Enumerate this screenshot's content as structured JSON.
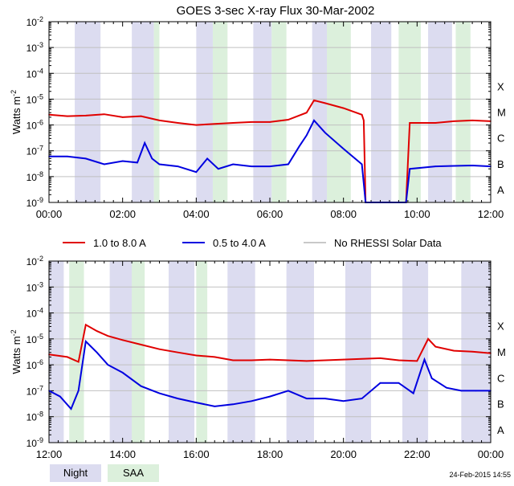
{
  "title": "GOES 3-sec X-ray Flux   30-Mar-2002",
  "footer": {
    "timestamp": "24-Feb-2015 14:55",
    "legend_night": "Night",
    "legend_saa": "SAA"
  },
  "colors": {
    "long_channel": "#e00000",
    "short_channel": "#0000e0",
    "no_rhessi": "#909090",
    "night": "#dcdcf0",
    "saa": "#dcf0dc",
    "grid": "#c0c0c0"
  },
  "chart_data": [
    {
      "type": "line",
      "title": "GOES 3-sec X-ray Flux   30-Mar-2002",
      "ylabel": "Watts m^-2",
      "xlabel": "",
      "y_scale": "log",
      "ylim": [
        1e-09,
        0.01
      ],
      "xlim_hours": [
        0,
        12
      ],
      "x_tick_labels": [
        "00:00",
        "02:00",
        "04:00",
        "06:00",
        "08:00",
        "10:00",
        "12:00"
      ],
      "y_tick_labels": [
        "10^-9",
        "10^-8",
        "10^-7",
        "10^-6",
        "10^-5",
        "10^-4",
        "10^-3",
        "10^-2"
      ],
      "flare_classes": [
        "A",
        "B",
        "C",
        "M",
        "X"
      ],
      "night_intervals_hours": [
        [
          0.7,
          1.4
        ],
        [
          2.25,
          2.85
        ],
        [
          4.0,
          4.45
        ],
        [
          5.55,
          6.05
        ],
        [
          7.15,
          7.55
        ],
        [
          8.75,
          9.3
        ],
        [
          10.3,
          10.95
        ]
      ],
      "saa_intervals_hours": [
        [
          2.85,
          3.0
        ],
        [
          4.45,
          4.85
        ],
        [
          6.05,
          6.45
        ],
        [
          7.55,
          8.2
        ],
        [
          9.5,
          10.1
        ],
        [
          11.05,
          11.45
        ]
      ],
      "series": [
        {
          "name": "1.0 to 8.0 A",
          "x_hours": [
            0,
            0.5,
            1.0,
            1.5,
            2.0,
            2.5,
            3.0,
            3.5,
            4.0,
            4.5,
            5.0,
            5.5,
            6.0,
            6.5,
            7.0,
            7.2,
            7.5,
            8.0,
            8.5,
            8.55,
            8.6,
            9.7,
            9.8,
            10.5,
            11.0,
            11.5,
            12.0
          ],
          "values": [
            2.5e-06,
            2.2e-06,
            2.3e-06,
            2.6e-06,
            2e-06,
            2.2e-06,
            1.5e-06,
            1.2e-06,
            1e-06,
            1.1e-06,
            1.2e-06,
            1.3e-06,
            1.3e-06,
            1.6e-06,
            3e-06,
            9e-06,
            7e-06,
            4.5e-06,
            2.5e-06,
            1.5e-06,
            1e-09,
            1e-09,
            1.2e-06,
            1.2e-06,
            1.4e-06,
            1.5e-06,
            1.4e-06
          ]
        },
        {
          "name": "0.5 to 4.0 A",
          "x_hours": [
            0,
            0.5,
            1.0,
            1.5,
            2.0,
            2.4,
            2.6,
            2.8,
            3.0,
            3.5,
            4.0,
            4.3,
            4.6,
            5.0,
            5.5,
            6.0,
            6.5,
            6.8,
            7.0,
            7.2,
            7.5,
            8.0,
            8.5,
            8.6,
            9.7,
            9.8,
            10.5,
            11.0,
            11.5,
            12.0
          ],
          "values": [
            6e-08,
            6e-08,
            5e-08,
            3e-08,
            4e-08,
            3.5e-08,
            2e-07,
            5e-08,
            3e-08,
            2.5e-08,
            1.5e-08,
            5e-08,
            2e-08,
            3e-08,
            2.5e-08,
            2.5e-08,
            3e-08,
            1.5e-07,
            4e-07,
            1.5e-06,
            5e-07,
            1.2e-07,
            3e-08,
            1e-09,
            1e-09,
            2e-08,
            2.5e-08,
            2.6e-08,
            2.7e-08,
            2.5e-08
          ]
        }
      ]
    },
    {
      "type": "line",
      "title": "",
      "ylabel": "Watts m^-2",
      "xlabel": "",
      "y_scale": "log",
      "ylim": [
        1e-09,
        0.01
      ],
      "xlim_hours": [
        12,
        24
      ],
      "x_tick_labels": [
        "12:00",
        "14:00",
        "16:00",
        "18:00",
        "20:00",
        "22:00",
        "00:00"
      ],
      "y_tick_labels": [
        "10^-9",
        "10^-8",
        "10^-7",
        "10^-6",
        "10^-5",
        "10^-4",
        "10^-3",
        "10^-2"
      ],
      "flare_classes": [
        "A",
        "B",
        "C",
        "M",
        "X"
      ],
      "night_intervals_hours": [
        [
          12.0,
          12.4
        ],
        [
          13.65,
          14.35
        ],
        [
          15.25,
          15.95
        ],
        [
          16.85,
          17.6
        ],
        [
          18.45,
          19.2
        ],
        [
          20.05,
          20.75
        ],
        [
          21.6,
          22.3
        ],
        [
          23.2,
          24.0
        ]
      ],
      "saa_intervals_hours": [
        [
          12.55,
          12.95
        ],
        [
          14.25,
          14.6
        ],
        [
          16.0,
          16.3
        ]
      ],
      "legend": [
        "1.0 to 8.0 A",
        "0.5 to 4.0 A",
        "No RHESSI Solar Data"
      ],
      "series": [
        {
          "name": "1.0 to 8.0 A",
          "x_hours": [
            12.0,
            12.5,
            12.8,
            13.0,
            13.3,
            13.6,
            14.0,
            14.5,
            15.0,
            15.5,
            16.0,
            16.5,
            17.0,
            17.5,
            18.0,
            18.5,
            19.0,
            19.5,
            20.0,
            20.5,
            21.0,
            21.5,
            22.0,
            22.3,
            22.5,
            23.0,
            23.5,
            24.0
          ],
          "values": [
            2.5e-06,
            2e-06,
            1.3e-06,
            3.5e-05,
            2e-05,
            1.3e-05,
            9e-06,
            6e-06,
            4e-06,
            3e-06,
            2.3e-06,
            2e-06,
            1.5e-06,
            1.5e-06,
            1.6e-06,
            1.5e-06,
            1.4e-06,
            1.5e-06,
            1.6e-06,
            1.7e-06,
            1.8e-06,
            1.5e-06,
            1.4e-06,
            1e-05,
            5e-06,
            3.5e-06,
            3.2e-06,
            2.8e-06
          ]
        },
        {
          "name": "0.5 to 4.0 A",
          "x_hours": [
            12.0,
            12.3,
            12.6,
            12.8,
            13.0,
            13.3,
            13.6,
            14.0,
            14.5,
            15.0,
            15.5,
            16.0,
            16.5,
            17.0,
            17.5,
            18.0,
            18.5,
            19.0,
            19.5,
            20.0,
            20.5,
            21.0,
            21.5,
            21.9,
            22.2,
            22.4,
            22.8,
            23.2,
            23.6,
            24.0
          ],
          "values": [
            1e-07,
            6e-08,
            2e-08,
            1e-07,
            8e-06,
            3e-06,
            1e-06,
            5e-07,
            1.5e-07,
            8e-08,
            5e-08,
            3.5e-08,
            2.5e-08,
            3e-08,
            4e-08,
            6e-08,
            1e-07,
            5e-08,
            5e-08,
            4e-08,
            5e-08,
            2e-07,
            2e-07,
            8e-08,
            1.6e-06,
            3e-07,
            1.3e-07,
            1e-07,
            1e-07,
            1e-07
          ]
        }
      ]
    }
  ]
}
